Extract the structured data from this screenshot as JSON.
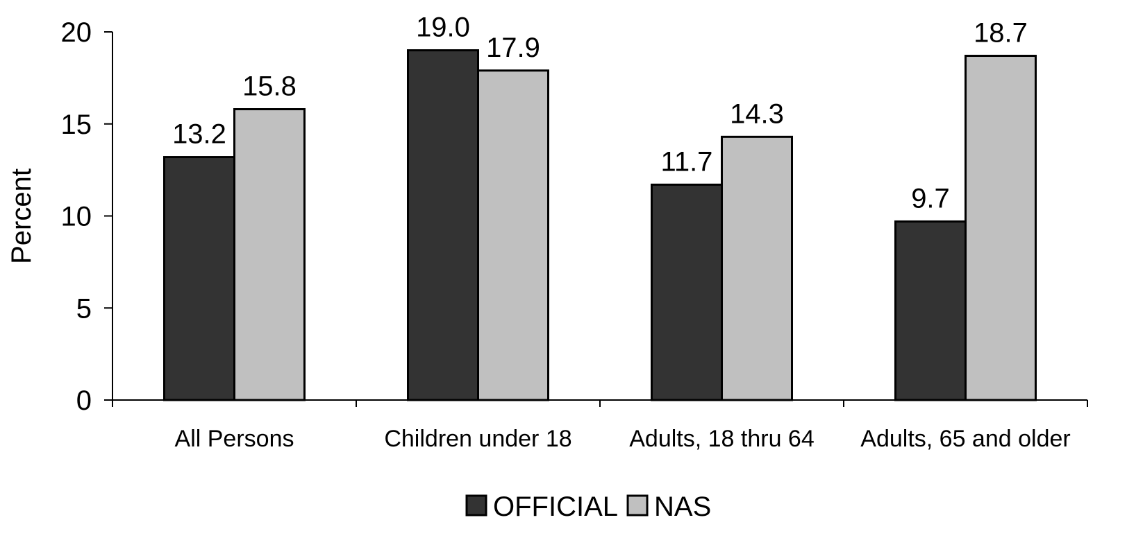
{
  "chart_data": {
    "type": "bar",
    "title": "",
    "xlabel": "",
    "ylabel": "Percent",
    "ylim": [
      0,
      20
    ],
    "yticks": [
      0,
      5,
      10,
      15,
      20
    ],
    "categories": [
      "All Persons",
      "Children under 18",
      "Adults, 18 thru 64",
      "Adults, 65 and older"
    ],
    "series": [
      {
        "name": "OFFICIAL",
        "values": [
          13.2,
          19.0,
          11.7,
          9.7
        ],
        "labels": [
          "13.2",
          "19.0",
          "11.7",
          "9.7"
        ],
        "color": "#333333"
      },
      {
        "name": "NAS",
        "values": [
          15.8,
          17.9,
          14.3,
          18.7
        ],
        "labels": [
          "15.8",
          "17.9",
          "14.3",
          "18.7"
        ],
        "color": "#c0c0c0"
      }
    ],
    "grid": false,
    "legend_position": "bottom-center"
  }
}
